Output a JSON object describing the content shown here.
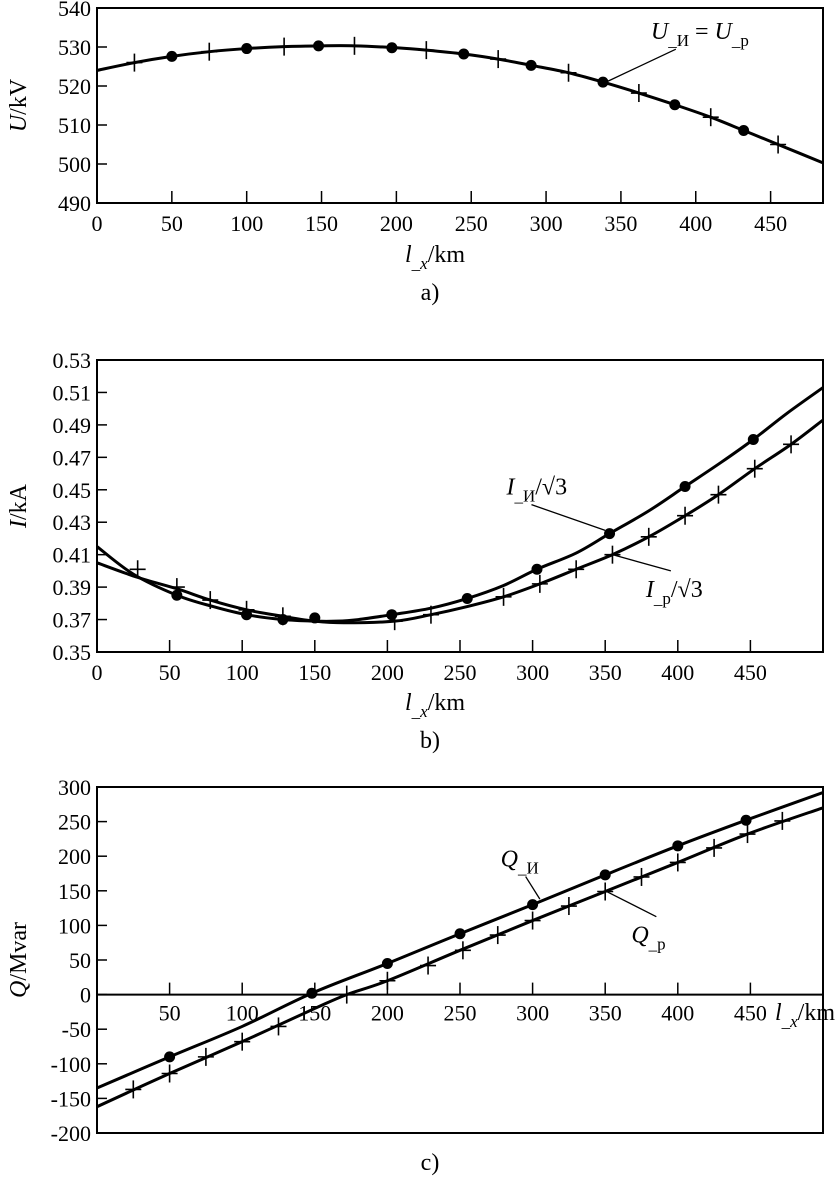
{
  "chart_data": [
    {
      "type": "line",
      "caption": "a)",
      "xlabel": "l_x/km",
      "ylabel": "U/kV",
      "xlim": [
        0,
        485
      ],
      "ylim": [
        490,
        540
      ],
      "xticks": [
        0,
        50,
        100,
        150,
        200,
        250,
        300,
        350,
        400,
        450
      ],
      "yticks": [
        490,
        500,
        510,
        520,
        530,
        540
      ],
      "series": [
        {
          "name": "U_И = U_p",
          "marker": "none",
          "x": [
            0,
            25,
            50,
            75,
            100,
            125,
            150,
            172,
            200,
            220,
            245,
            268,
            290,
            315,
            338,
            362,
            386,
            410,
            432,
            455,
            485
          ],
          "y": [
            524,
            526,
            527.6,
            528.8,
            529.6,
            530.1,
            530.3,
            530.3,
            529.8,
            529.2,
            528.2,
            526.9,
            525.3,
            523.4,
            521,
            518.2,
            515.2,
            512,
            508.6,
            505,
            500.3
          ]
        },
        {
          "name": "U_И",
          "marker": "dot",
          "x": [
            50,
            100,
            148,
            197,
            245,
            290,
            338,
            386,
            432
          ],
          "y": [
            527.6,
            529.6,
            530.3,
            529.8,
            528.2,
            525.3,
            521,
            515.2,
            508.6
          ]
        },
        {
          "name": "U_p",
          "marker": "cross",
          "x": [
            25,
            75,
            125,
            172,
            220,
            268,
            315,
            362,
            410,
            455
          ],
          "y": [
            526,
            528.8,
            530.1,
            530.3,
            529.2,
            526.9,
            523.4,
            518.2,
            512,
            505
          ]
        }
      ],
      "annotations": [
        {
          "text": "U_И = U_p",
          "x": 370,
          "y": 532,
          "to_x": 340,
          "to_y": 521
        }
      ]
    },
    {
      "type": "line",
      "caption": "b)",
      "xlabel": "l_x/km",
      "ylabel": "I/kA",
      "xlim": [
        0,
        500
      ],
      "ylim": [
        0.35,
        0.53
      ],
      "xticks": [
        0,
        50,
        100,
        150,
        200,
        250,
        300,
        350,
        400,
        450
      ],
      "yticks": [
        0.35,
        0.37,
        0.39,
        0.41,
        0.43,
        0.45,
        0.47,
        0.49,
        0.51,
        0.53
      ],
      "series": [
        {
          "name": "I_И/√3 curve",
          "marker": "none",
          "x": [
            0,
            25,
            55,
            80,
            103,
            128,
            150,
            165,
            180,
            203,
            230,
            255,
            280,
            303,
            330,
            353,
            380,
            405,
            430,
            452,
            475,
            500
          ],
          "y": [
            0.415,
            0.398,
            0.385,
            0.378,
            0.373,
            0.37,
            0.369,
            0.369,
            0.37,
            0.373,
            0.377,
            0.383,
            0.391,
            0.401,
            0.411,
            0.423,
            0.437,
            0.452,
            0.467,
            0.481,
            0.497,
            0.513
          ]
        },
        {
          "name": "I_p/√3 curve",
          "marker": "none",
          "x": [
            0,
            28,
            55,
            78,
            103,
            128,
            150,
            170,
            205,
            230,
            255,
            280,
            305,
            330,
            355,
            380,
            405,
            428,
            453,
            478,
            500
          ],
          "y": [
            0.405,
            0.396,
            0.389,
            0.382,
            0.376,
            0.372,
            0.369,
            0.368,
            0.369,
            0.373,
            0.378,
            0.384,
            0.392,
            0.401,
            0.41,
            0.421,
            0.434,
            0.447,
            0.463,
            0.478,
            0.493
          ]
        },
        {
          "name": "I_И/√3",
          "marker": "dot",
          "x": [
            55,
            103,
            128,
            150,
            203,
            255,
            303,
            353,
            405,
            452
          ],
          "y": [
            0.385,
            0.373,
            0.37,
            0.371,
            0.373,
            0.383,
            0.401,
            0.423,
            0.452,
            0.481
          ]
        },
        {
          "name": "I_p/√3",
          "marker": "cross",
          "x": [
            28,
            55,
            78,
            103,
            128,
            205,
            230,
            280,
            305,
            330,
            355,
            380,
            405,
            428,
            453,
            478
          ],
          "y": [
            0.401,
            0.39,
            0.382,
            0.376,
            0.372,
            0.369,
            0.373,
            0.384,
            0.392,
            0.401,
            0.41,
            0.421,
            0.434,
            0.447,
            0.463,
            0.478
          ]
        }
      ],
      "annotations": [
        {
          "text": "I_И/√3",
          "x": 282,
          "y": 0.447,
          "to_x": 350,
          "to_y": 0.425
        },
        {
          "text": "I_p/√3",
          "x": 378,
          "y": 0.384,
          "to_x": 355,
          "to_y": 0.41
        }
      ]
    },
    {
      "type": "line",
      "caption": "c)",
      "xlabel": "l_x/km",
      "ylabel": "Q/Mvar",
      "xlim": [
        0,
        500
      ],
      "ylim": [
        -200,
        300
      ],
      "xticks": [
        50,
        100,
        150,
        200,
        250,
        300,
        350,
        400,
        450
      ],
      "yticks": [
        -200,
        -150,
        -100,
        -50,
        0,
        50,
        100,
        150,
        200,
        250,
        300
      ],
      "series": [
        {
          "name": "Q_И curve",
          "marker": "none",
          "x": [
            0,
            50,
            100,
            148,
            200,
            250,
            300,
            350,
            400,
            447,
            500
          ],
          "y": [
            -135,
            -90,
            -46,
            2,
            45,
            88,
            130,
            173,
            215,
            252,
            292
          ]
        },
        {
          "name": "Q_p curve",
          "marker": "none",
          "x": [
            0,
            50,
            100,
            150,
            172,
            200,
            250,
            300,
            350,
            400,
            448,
            500
          ],
          "y": [
            -162,
            -114,
            -68,
            -20,
            0,
            20,
            64,
            107,
            149,
            191,
            232,
            270
          ]
        },
        {
          "name": "Q_И",
          "marker": "dot",
          "x": [
            50,
            148,
            200,
            250,
            300,
            350,
            400,
            447
          ],
          "y": [
            -90,
            2,
            45,
            88,
            130,
            173,
            215,
            252
          ]
        },
        {
          "name": "Q_p",
          "marker": "cross",
          "x": [
            25,
            50,
            75,
            100,
            125,
            172,
            200,
            228,
            252,
            276,
            300,
            325,
            350,
            375,
            400,
            425,
            448,
            472
          ],
          "y": [
            -137,
            -114,
            -90,
            -68,
            -46,
            0,
            20,
            42,
            64,
            86,
            107,
            128,
            149,
            170,
            191,
            212,
            232,
            251
          ]
        }
      ],
      "annotations": [
        {
          "text": "Q_И",
          "x": 278,
          "y": 185,
          "to_x": 305,
          "to_y": 138
        },
        {
          "text": "Q_p",
          "x": 368,
          "y": 75,
          "to_x": 350,
          "to_y": 150
        }
      ]
    }
  ]
}
